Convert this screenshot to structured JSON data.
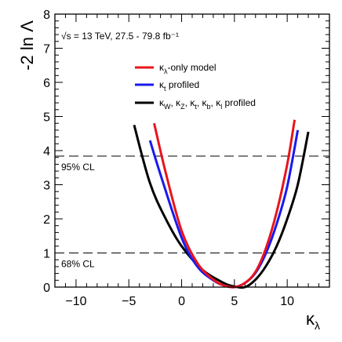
{
  "chart_data": {
    "type": "line",
    "title": "",
    "xlabel": "κλ",
    "ylabel": "-2 ln Λ",
    "xlim": [
      -12,
      14
    ],
    "ylim": [
      0,
      8
    ],
    "x_ticks": [
      "−10",
      "−5",
      "0",
      "5",
      "10"
    ],
    "y_ticks": [
      "0",
      "1",
      "2",
      "3",
      "4",
      "5",
      "6",
      "7",
      "8"
    ],
    "annotation": "√s = 13 TeV, 27.5 - 79.8 fb⁻¹",
    "reference_lines": [
      {
        "label": "95% CL",
        "y": 3.84
      },
      {
        "label": "68% CL",
        "y": 1.0
      }
    ],
    "legend_position": "top-right",
    "series": [
      {
        "name": "κλ-only model",
        "color": "#e8141c",
        "x": [
          -2.6,
          -1.5,
          0,
          1.5,
          3,
          4,
          5,
          6,
          7,
          8,
          9,
          10,
          10.7
        ],
        "y": [
          4.8,
          3.35,
          1.65,
          0.7,
          0.22,
          0.05,
          0.0,
          0.12,
          0.45,
          1.15,
          2.2,
          3.6,
          4.9
        ]
      },
      {
        "name": "κt profiled",
        "color": "#1a1aee",
        "x": [
          -3.0,
          -2.0,
          0,
          1.5,
          3,
          4,
          5,
          6,
          7,
          8,
          9,
          10,
          11.0
        ],
        "y": [
          4.3,
          3.3,
          1.45,
          0.6,
          0.2,
          0.05,
          0.0,
          0.12,
          0.42,
          1.0,
          1.85,
          2.95,
          4.6
        ]
      },
      {
        "name": "κW, κZ, κt, κb, κl profiled",
        "color": "#000000",
        "x": [
          -4.5,
          -3.0,
          -1.5,
          0,
          2,
          4,
          5,
          6,
          7,
          8,
          9,
          10,
          11,
          12.0
        ],
        "y": [
          4.75,
          3.05,
          2.0,
          1.2,
          0.5,
          0.12,
          0.02,
          0.0,
          0.22,
          0.62,
          1.2,
          2.0,
          3.0,
          4.55
        ]
      }
    ]
  }
}
